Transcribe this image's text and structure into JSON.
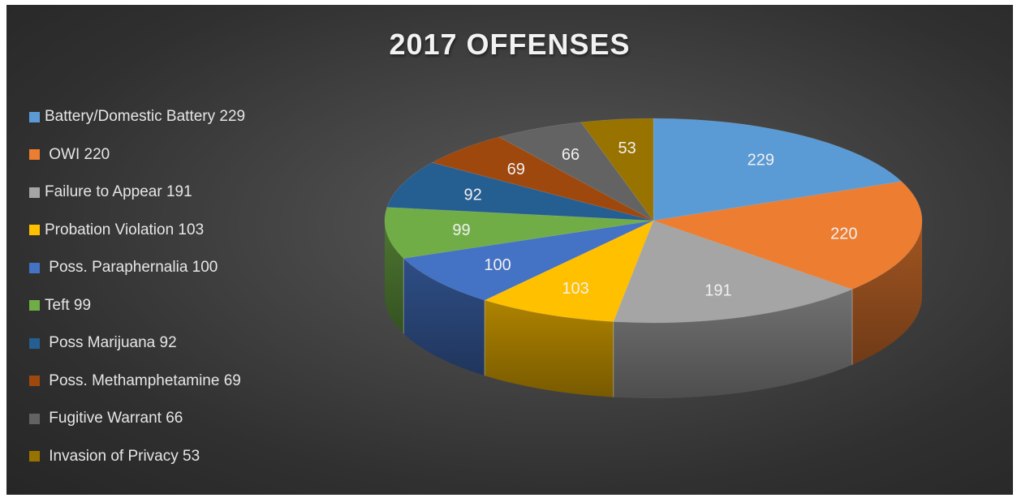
{
  "chart_data": {
    "type": "pie",
    "title": "2017 OFFENSES",
    "legend_position": "left",
    "three_d": true,
    "categories": [
      "Battery/Domestic Battery",
      "OWI",
      "Failure to Appear",
      "Probation Violation",
      "Poss. Paraphernalia",
      "Teft",
      "Poss Marijuana",
      "Poss. Methamphetamine",
      "Fugitive Warrant",
      "Invasion of Privacy"
    ],
    "values": [
      229,
      220,
      191,
      103,
      100,
      99,
      92,
      69,
      66,
      53
    ],
    "legend_labels": [
      "Battery/Domestic Battery 229",
      " OWI 220",
      "Failure to Appear 191",
      "Probation Violation 103",
      " Poss. Paraphernalia 100",
      "Teft 99",
      " Poss Marijuana 92",
      " Poss. Methamphetamine 69",
      " Fugitive Warrant 66",
      " Invasion of Privacy 53"
    ],
    "data_labels": [
      "229",
      "220",
      "191",
      "103",
      "100",
      "99",
      "92",
      "69",
      "66",
      "53"
    ],
    "colors": [
      "#5b9bd5",
      "#ed7d31",
      "#a5a5a5",
      "#ffc000",
      "#4472c4",
      "#70ad47",
      "#255e91",
      "#9e480e",
      "#636363",
      "#997300"
    ]
  }
}
